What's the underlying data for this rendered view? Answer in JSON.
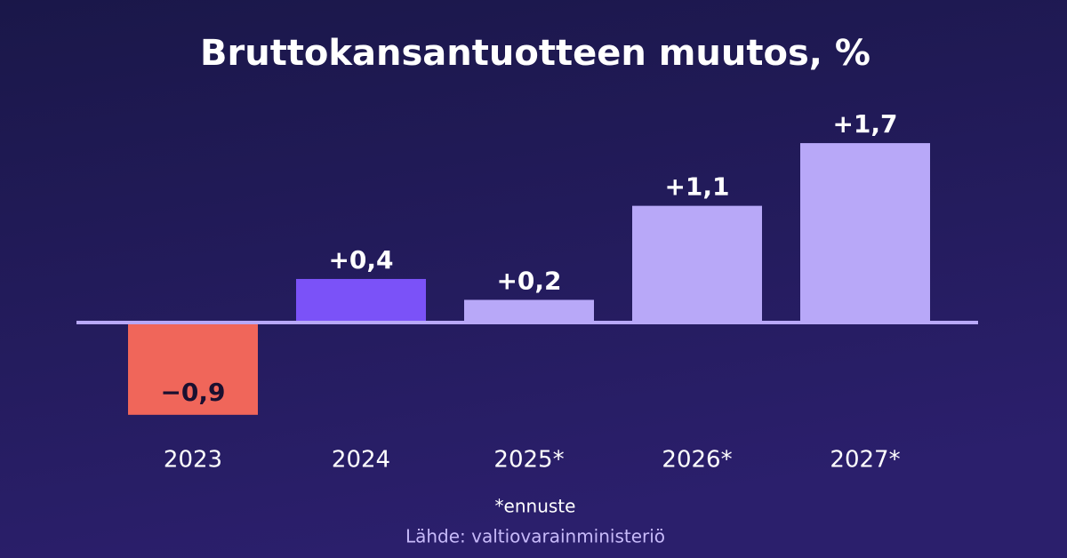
{
  "chart_data": {
    "type": "bar",
    "title": "Bruttokansantuotteen muutos, %",
    "categories": [
      "2023",
      "2024",
      "2025*",
      "2026*",
      "2027*"
    ],
    "values": [
      -0.9,
      0.4,
      0.2,
      1.1,
      1.7
    ],
    "value_labels": [
      "−0,9",
      "+0,4",
      "+0,2",
      "+1,1",
      "+1,7"
    ],
    "colors": [
      "#f0665a",
      "#7b52f8",
      "#b8a8f8",
      "#b8a8f8",
      "#b8a8f8"
    ],
    "footnote": "*ennuste",
    "source": "Lähde: valtiovarainministeriö"
  }
}
